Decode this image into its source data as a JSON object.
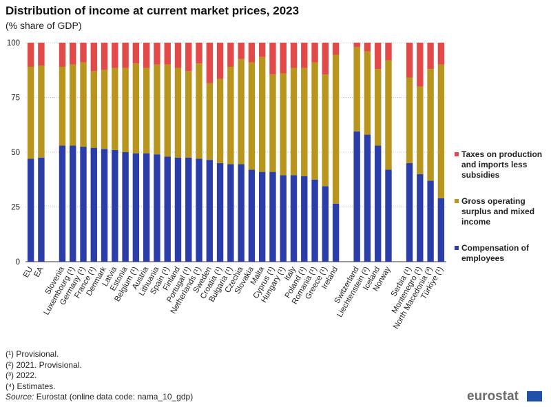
{
  "chart_data": {
    "type": "stacked_bar",
    "title": "Distribution of income at current market prices, 2023",
    "subtitle": "(% share of GDP)",
    "categories": [
      "EU",
      "EA",
      null,
      "Slovenia",
      "Luxembourg (¹)",
      "Germany (¹)",
      "France (¹)",
      "Denmark",
      "Latvia",
      "Estonia",
      "Belgium (¹)",
      "Austria",
      "Lithuania",
      "Spain (¹)",
      "Finland",
      "Portugal (¹)",
      "Netherlands (¹)",
      "Sweden",
      "Croatia (¹)",
      "Bulgaria (¹)",
      "Czechia",
      "Slovakia",
      "Malta",
      "Cyprus (¹)",
      "Hungary (¹)",
      "Italy",
      "Poland (¹)",
      "Romania (¹)",
      "Greece (¹)",
      "Ireland",
      null,
      "Switzerland",
      "Liechtenstein (²)",
      "Iceland",
      "Norway",
      null,
      "Serbia (¹)",
      "Montenegro (¹)",
      "North Macedonia (³)",
      "Türkiye (¹)"
    ],
    "series": [
      {
        "name": "Compensation of employees",
        "color": "#2b3da8",
        "values": [
          47,
          47.5,
          null,
          53,
          53,
          52.5,
          52,
          51.5,
          51,
          50,
          49.5,
          49.5,
          49,
          48,
          47.5,
          47.5,
          47,
          46.5,
          45,
          44.5,
          44.5,
          42,
          41,
          41,
          39.5,
          39.5,
          39,
          37.5,
          34.5,
          26.5,
          null,
          59.5,
          58,
          53,
          42,
          null,
          45,
          40,
          37,
          29
        ]
      },
      {
        "name": "Gross operating surplus and mixed income",
        "color": "#b8961e",
        "values": [
          42,
          42,
          null,
          36,
          37,
          38.5,
          35,
          36,
          37.5,
          38.5,
          41,
          39,
          41,
          42,
          41,
          39.5,
          43.5,
          35,
          38.5,
          44.5,
          48,
          49,
          52.5,
          44.5,
          46.5,
          49,
          49.5,
          53.5,
          51,
          68,
          null,
          38.5,
          38,
          35,
          50,
          null,
          39,
          40,
          51,
          61
        ]
      },
      {
        "name": "Taxes on production and imports less subsidies",
        "color": "#e24a4a",
        "values": [
          11,
          10.5,
          null,
          11,
          10,
          9,
          13,
          12.5,
          11.5,
          11.5,
          9.5,
          11.5,
          10,
          10,
          11.5,
          13,
          9.5,
          18.5,
          16.5,
          11,
          7.5,
          9,
          6.5,
          14.5,
          14,
          11.5,
          11.5,
          9,
          14.5,
          5.5,
          null,
          2,
          4,
          12,
          8,
          null,
          16,
          20,
          12,
          10
        ]
      }
    ],
    "ylim": [
      0,
      100
    ],
    "yticks": [
      0,
      25,
      50,
      75,
      100
    ],
    "grid": true,
    "legend": "right",
    "footnotes": [
      "(¹) Provisional.",
      "(²) 2021. Provisional.",
      "(³) 2022.",
      "(⁴) Estimates."
    ],
    "source_label": "Source:",
    "source": "Eurostat (online data code: nama_10_gdp)",
    "logo": "eurostat"
  }
}
